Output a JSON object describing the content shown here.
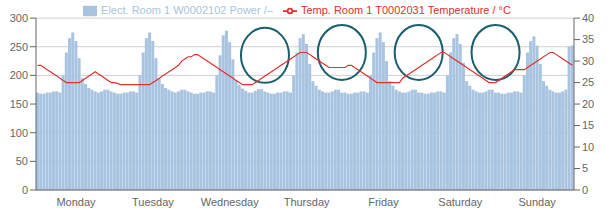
{
  "chart_data": {
    "type": "bar",
    "categories": [
      null,
      null,
      null,
      null,
      null,
      null,
      null,
      null,
      null,
      null,
      null,
      null,
      "Monday",
      null,
      null,
      null,
      null,
      null,
      null,
      null,
      null,
      null,
      null,
      null,
      null,
      null,
      null,
      null,
      null,
      null,
      null,
      null,
      null,
      null,
      null,
      null,
      "Tuesday",
      null,
      null,
      null,
      null,
      null,
      null,
      null,
      null,
      null,
      null,
      null,
      null,
      null,
      null,
      null,
      null,
      null,
      null,
      null,
      null,
      null,
      null,
      null,
      "Wednesday",
      null,
      null,
      null,
      null,
      null,
      null,
      null,
      null,
      null,
      null,
      null,
      null,
      null,
      null,
      null,
      null,
      null,
      null,
      null,
      null,
      null,
      null,
      null,
      "Thursday",
      null,
      null,
      null,
      null,
      null,
      null,
      null,
      null,
      null,
      null,
      null,
      null,
      null,
      null,
      null,
      null,
      null,
      null,
      null,
      null,
      null,
      null,
      null,
      "Friday",
      null,
      null,
      null,
      null,
      null,
      null,
      null,
      null,
      null,
      null,
      null,
      null,
      null,
      null,
      null,
      null,
      null,
      null,
      null,
      null,
      null,
      null,
      null,
      "Saturday",
      null,
      null,
      null,
      null,
      null,
      null,
      null,
      null,
      null,
      null,
      null,
      null,
      null,
      null,
      null,
      null,
      null,
      null,
      null,
      null,
      null,
      null,
      null,
      "Sunday",
      null,
      null,
      null,
      null,
      null,
      null,
      null,
      null,
      null,
      null,
      null
    ],
    "series": [
      {
        "name": "Elect. Room 1 W0002102 Power /–",
        "type": "bar",
        "color": "#a8c4e0",
        "values": [
          170,
          168,
          168,
          170,
          170,
          172,
          172,
          170,
          200,
          240,
          265,
          275,
          260,
          230,
          195,
          185,
          178,
          175,
          172,
          170,
          172,
          175,
          175,
          172,
          170,
          168,
          168,
          170,
          170,
          172,
          172,
          170,
          200,
          240,
          265,
          275,
          260,
          230,
          195,
          185,
          178,
          175,
          172,
          170,
          172,
          175,
          175,
          172,
          170,
          168,
          168,
          170,
          170,
          172,
          172,
          170,
          200,
          235,
          270,
          278,
          258,
          228,
          192,
          183,
          177,
          173,
          170,
          170,
          173,
          176,
          176,
          172,
          170,
          168,
          168,
          170,
          170,
          172,
          172,
          170,
          200,
          240,
          265,
          272,
          255,
          220,
          190,
          182,
          175,
          172,
          170,
          170,
          172,
          175,
          175,
          170,
          170,
          168,
          168,
          170,
          170,
          172,
          172,
          170,
          200,
          240,
          265,
          275,
          258,
          225,
          190,
          182,
          175,
          172,
          170,
          170,
          172,
          175,
          175,
          170,
          170,
          168,
          168,
          170,
          170,
          172,
          172,
          170,
          200,
          240,
          265,
          272,
          255,
          222,
          190,
          182,
          175,
          172,
          170,
          170,
          172,
          175,
          175,
          170,
          170,
          168,
          168,
          170,
          170,
          172,
          172,
          170,
          200,
          240,
          260,
          268,
          252,
          220,
          190,
          182,
          175,
          172,
          170,
          170,
          172,
          175,
          250,
          252
        ]
      },
      {
        "name": "Temp. Room 1 T0002031 Temperature / °C",
        "type": "line",
        "color": "#e03030",
        "axis": "y2",
        "values": [
          29,
          29,
          28.5,
          28,
          27.5,
          27,
          26.5,
          26,
          25.5,
          25,
          25,
          25,
          25,
          25,
          25.5,
          26,
          26.5,
          27,
          27.5,
          27,
          26.5,
          26,
          25.5,
          25,
          25,
          24.8,
          24.5,
          24.5,
          24.5,
          24.5,
          24.5,
          24.5,
          24.5,
          24.5,
          24.5,
          24.5,
          25,
          25.5,
          26,
          26.5,
          27,
          27.5,
          28,
          28.5,
          29,
          30,
          30.5,
          31,
          31,
          31.5,
          31.5,
          31,
          30.5,
          30,
          29.5,
          29,
          28.5,
          28,
          27.5,
          27,
          26.5,
          26,
          25.5,
          25,
          24.5,
          24.5,
          24.5,
          24.5,
          25,
          25.5,
          26,
          26.5,
          27,
          27.5,
          28,
          28.5,
          29,
          29.5,
          30,
          30.5,
          31,
          31.5,
          32,
          32,
          32,
          31.5,
          31,
          30.5,
          30,
          29.5,
          29,
          28.5,
          28.5,
          28.5,
          28.5,
          28.5,
          28.5,
          29,
          29,
          28.5,
          28,
          27.5,
          27,
          26.5,
          26,
          25.5,
          25,
          25,
          25,
          25,
          25,
          25,
          25,
          25,
          26,
          26.5,
          27,
          27.5,
          28,
          28.5,
          29,
          29.5,
          30,
          30.5,
          31,
          31.5,
          32,
          32,
          31.5,
          31,
          30.5,
          30,
          29.5,
          29,
          28.5,
          28,
          27.5,
          27,
          26.5,
          26,
          25.5,
          25,
          25,
          25,
          25.5,
          26,
          26.5,
          27,
          27.5,
          28,
          28,
          28,
          28,
          28.5,
          29,
          29.5,
          30,
          30.5,
          31,
          31.5,
          32,
          32,
          31.5,
          31,
          30.5,
          30,
          29.5,
          29
        ]
      }
    ],
    "ylim": [
      0,
      300
    ],
    "yticks": [
      0,
      50,
      100,
      150,
      200,
      250,
      300
    ],
    "y2lim": [
      0,
      40
    ],
    "y2ticks": [
      0,
      5,
      10,
      15,
      20,
      25,
      30,
      35,
      40
    ],
    "grid": true,
    "legend": "top",
    "circles": [
      {
        "cx": 71,
        "cy": 235,
        "rx": 7,
        "ry": 48,
        "color": "#1a5f6e"
      },
      {
        "cx": 95,
        "cy": 240,
        "rx": 7,
        "ry": 48,
        "color": "#1a5f6e"
      },
      {
        "cx": 119,
        "cy": 240,
        "rx": 7,
        "ry": 48,
        "color": "#1a5f6e"
      },
      {
        "cx": 143,
        "cy": 240,
        "rx": 7,
        "ry": 48,
        "color": "#1a5f6e"
      }
    ]
  }
}
